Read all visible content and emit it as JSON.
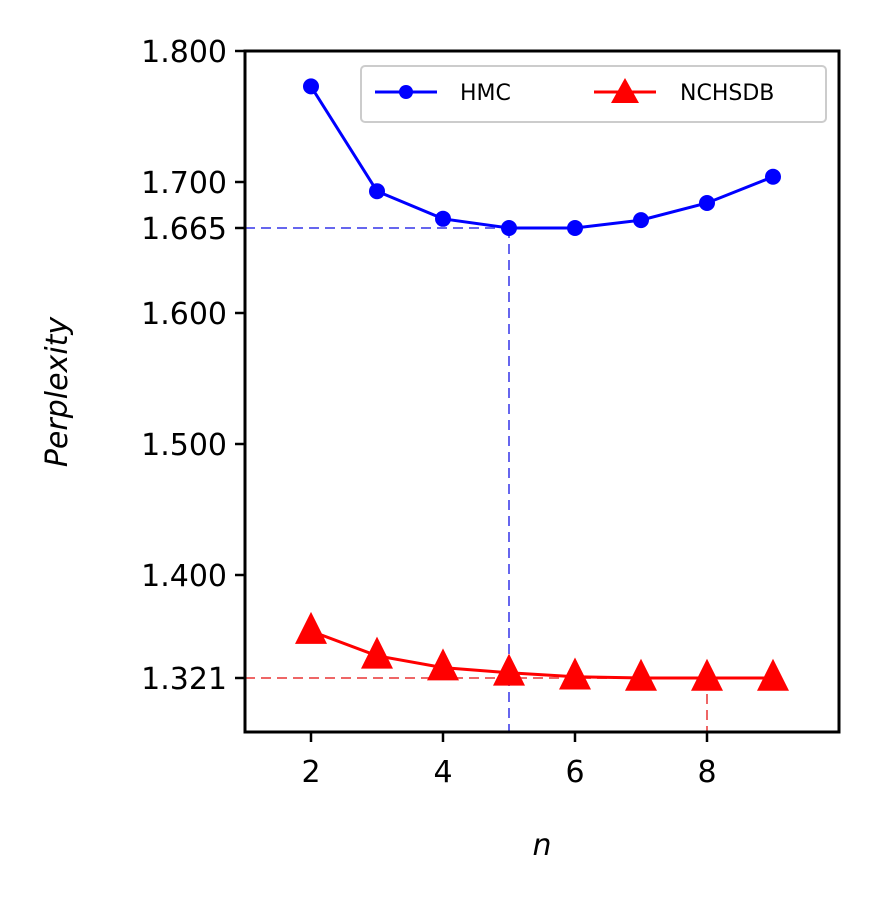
{
  "chart_data": {
    "type": "line",
    "title": "",
    "xlabel": "n",
    "ylabel": "Perplexity",
    "xlim": [
      1,
      10
    ],
    "ylim": [
      1.28,
      1.8
    ],
    "x": [
      2,
      3,
      4,
      5,
      6,
      7,
      8,
      9
    ],
    "xticks": [
      2,
      4,
      6,
      8
    ],
    "yticks": [
      1.321,
      1.4,
      1.5,
      1.6,
      1.665,
      1.7,
      1.8
    ],
    "ytick_labels": [
      "1.321",
      "1.400",
      "1.500",
      "1.600",
      "1.665",
      "1.700",
      "1.800"
    ],
    "series": [
      {
        "name": "HMC",
        "color": "#0000ff",
        "marker": "circle",
        "values": [
          1.773,
          1.693,
          1.672,
          1.665,
          1.665,
          1.671,
          1.684,
          1.704
        ]
      },
      {
        "name": "NCHSDB",
        "color": "#ff0000",
        "marker": "triangle",
        "values": [
          1.357,
          1.338,
          1.329,
          1.325,
          1.322,
          1.321,
          1.321,
          1.321
        ]
      }
    ],
    "reference_lines": [
      {
        "series": "HMC",
        "x": 5,
        "y": 1.665,
        "color": "#6666ee"
      },
      {
        "series": "NCHSDB",
        "x": 8,
        "y": 1.321,
        "color": "#ee6666"
      }
    ],
    "legend": {
      "placement": "top-right",
      "columns": 2
    },
    "grid": false
  }
}
